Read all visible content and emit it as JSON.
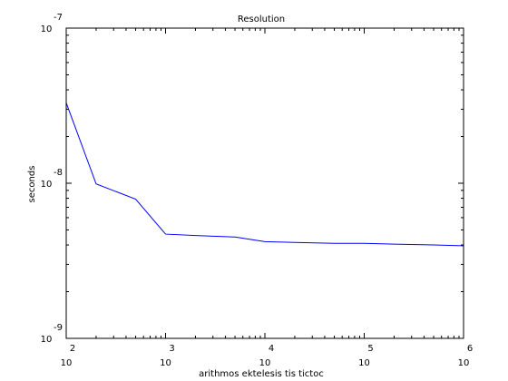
{
  "chart_data": {
    "type": "line",
    "title": "Resolution",
    "xlabel": "arithmos ektelesis tis tictoc",
    "ylabel": "seconds",
    "x_scale": "log",
    "y_scale": "log",
    "xlim": [
      100,
      1000000
    ],
    "ylim": [
      1e-09,
      1e-07
    ],
    "grid": false,
    "x_ticks": [
      {
        "value": 100,
        "base": "10",
        "exp": "2"
      },
      {
        "value": 1000,
        "base": "10",
        "exp": "3"
      },
      {
        "value": 10000,
        "base": "10",
        "exp": "4"
      },
      {
        "value": 100000,
        "base": "10",
        "exp": "5"
      },
      {
        "value": 1000000,
        "base": "10",
        "exp": "6"
      }
    ],
    "y_ticks": [
      {
        "value": 1e-09,
        "base": "10",
        "exp": "-9"
      },
      {
        "value": 1e-08,
        "base": "10",
        "exp": "-8"
      },
      {
        "value": 1e-07,
        "base": "10",
        "exp": "-7"
      }
    ],
    "series": [
      {
        "color": "#0000ff",
        "x": [
          100,
          200,
          500,
          1000,
          2000,
          5000,
          10000,
          20000,
          50000,
          100000,
          200000,
          500000,
          1000000
        ],
        "y": [
          3.3e-08,
          9.9e-09,
          7.9e-09,
          4.7e-09,
          4.6e-09,
          4.5e-09,
          4.2e-09,
          4.15e-09,
          4.1e-09,
          4.1e-09,
          4.05e-09,
          4e-09,
          3.95e-09
        ]
      }
    ]
  }
}
